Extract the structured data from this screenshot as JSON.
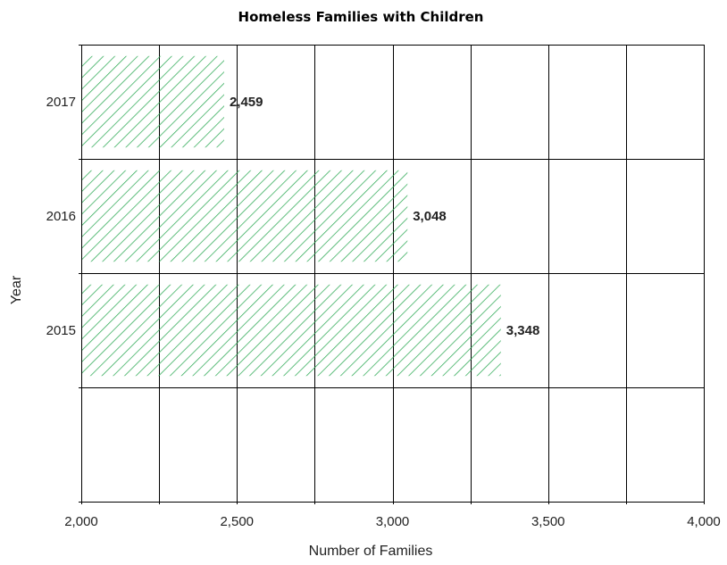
{
  "chart_data": {
    "type": "bar",
    "orientation": "horizontal",
    "title": "Homeless Families with Children",
    "xlabel": "Number of Families",
    "ylabel": "Year",
    "categories": [
      "2017",
      "2016",
      "2015",
      ""
    ],
    "values": [
      2459,
      3048,
      3348,
      null
    ],
    "data_labels": [
      "2,459",
      "3,048",
      "3,348",
      ""
    ],
    "xlim": [
      2000,
      4000
    ],
    "x_ticks": [
      2000,
      2500,
      3000,
      3500,
      4000
    ],
    "x_tick_labels": [
      "2,000",
      "2,500",
      "3,000",
      "3,500",
      "4,000"
    ],
    "grid": true,
    "bar_color": "#2eaa55",
    "bar_pattern": "diagonal-hatch"
  }
}
